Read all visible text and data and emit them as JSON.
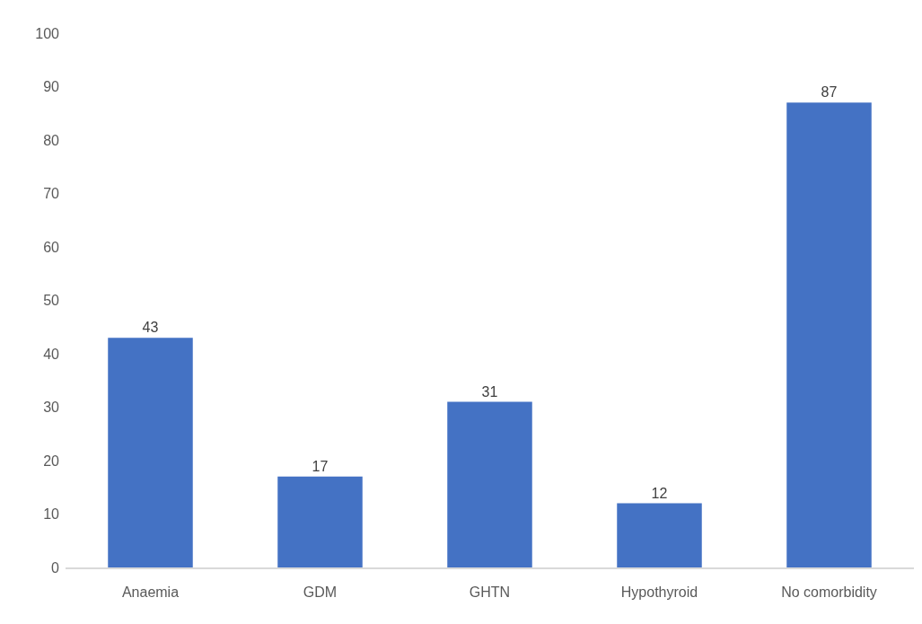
{
  "chart_data": {
    "type": "bar",
    "categories": [
      "Anaemia",
      "GDM",
      "GHTN",
      "Hypothyroid",
      "No comorbidity"
    ],
    "values": [
      43,
      17,
      31,
      12,
      87
    ],
    "color": "#4472c4",
    "ylim": [
      0,
      100
    ],
    "yticks": [
      0,
      10,
      20,
      30,
      40,
      50,
      60,
      70,
      80,
      90,
      100
    ],
    "grid": false,
    "data_labels": true
  }
}
